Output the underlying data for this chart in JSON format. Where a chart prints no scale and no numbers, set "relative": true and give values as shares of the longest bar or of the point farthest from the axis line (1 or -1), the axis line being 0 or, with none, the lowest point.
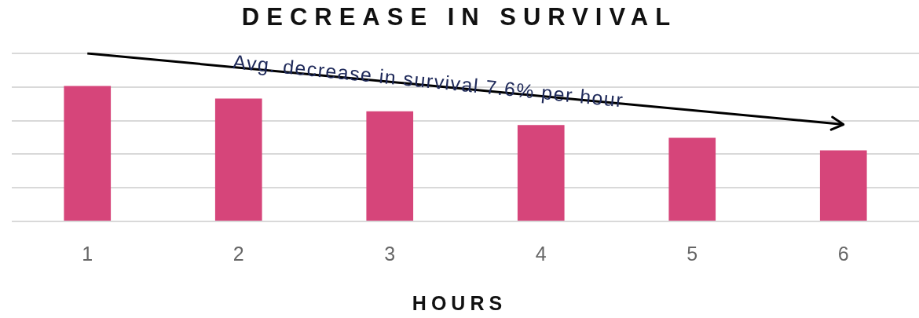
{
  "chart_data": {
    "type": "bar",
    "title": "DECREASE IN SURVIVAL",
    "xlabel": "HOURS",
    "categories": [
      "1",
      "2",
      "3",
      "4",
      "5",
      "6"
    ],
    "series": [
      {
        "color": "#d6457a",
        "values": [
          0.806,
          0.731,
          0.655,
          0.574,
          0.498,
          0.423
        ]
      },
      {
        "type": "line",
        "color": "#000000",
        "x": [
          "1",
          "6"
        ],
        "values": [
          1,
          0.577
        ]
      }
    ],
    "relative": true,
    "grid": "y",
    "legend": false,
    "annotations": [
      "Avg. decrease in survival 7.6% per hour"
    ]
  }
}
